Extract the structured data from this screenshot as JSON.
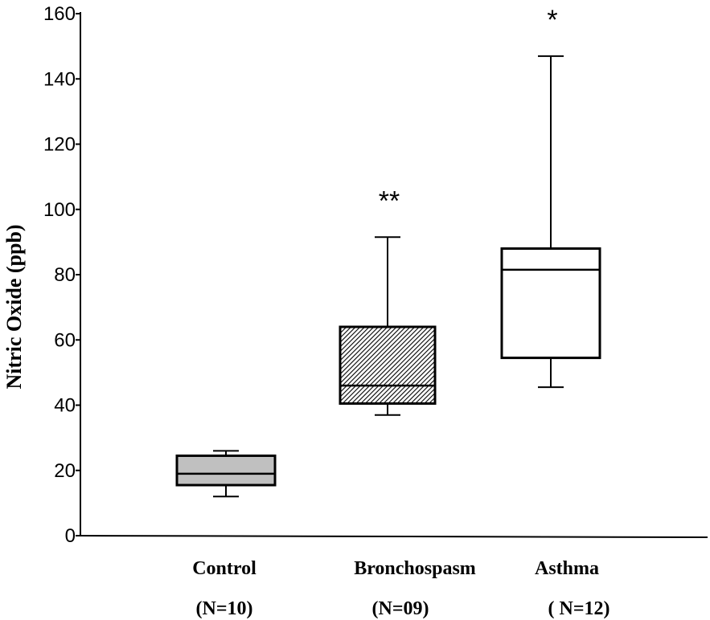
{
  "chart_data": {
    "type": "boxplot",
    "title": "",
    "ylabel": "Nitric Oxide (ppb)",
    "xlabel": "",
    "ylim": [
      0,
      160
    ],
    "yticks": [
      0,
      20,
      40,
      60,
      80,
      100,
      120,
      140,
      160
    ],
    "grid": false,
    "categories": [
      {
        "name": "Control",
        "n_label": "(N=10)",
        "whisker_low": 12,
        "q1": 15.5,
        "median": 19,
        "q3": 24.5,
        "whisker_high": 26,
        "fill": "#c0c0c0",
        "pattern": "solid",
        "significance": ""
      },
      {
        "name": "Bronchospasm",
        "n_label": "(N=09)",
        "whisker_low": 37,
        "q1": 40.5,
        "median": 46,
        "q3": 64,
        "whisker_high": 91.5,
        "fill": "#ffffff",
        "pattern": "hatched",
        "significance": "**"
      },
      {
        "name": "Asthma",
        "n_label": "( N=12)",
        "whisker_low": 45.5,
        "q1": 54.5,
        "median": 81.5,
        "q3": 88,
        "whisker_high": 147,
        "fill": "#ffffff",
        "pattern": "none",
        "significance": "*"
      }
    ]
  }
}
